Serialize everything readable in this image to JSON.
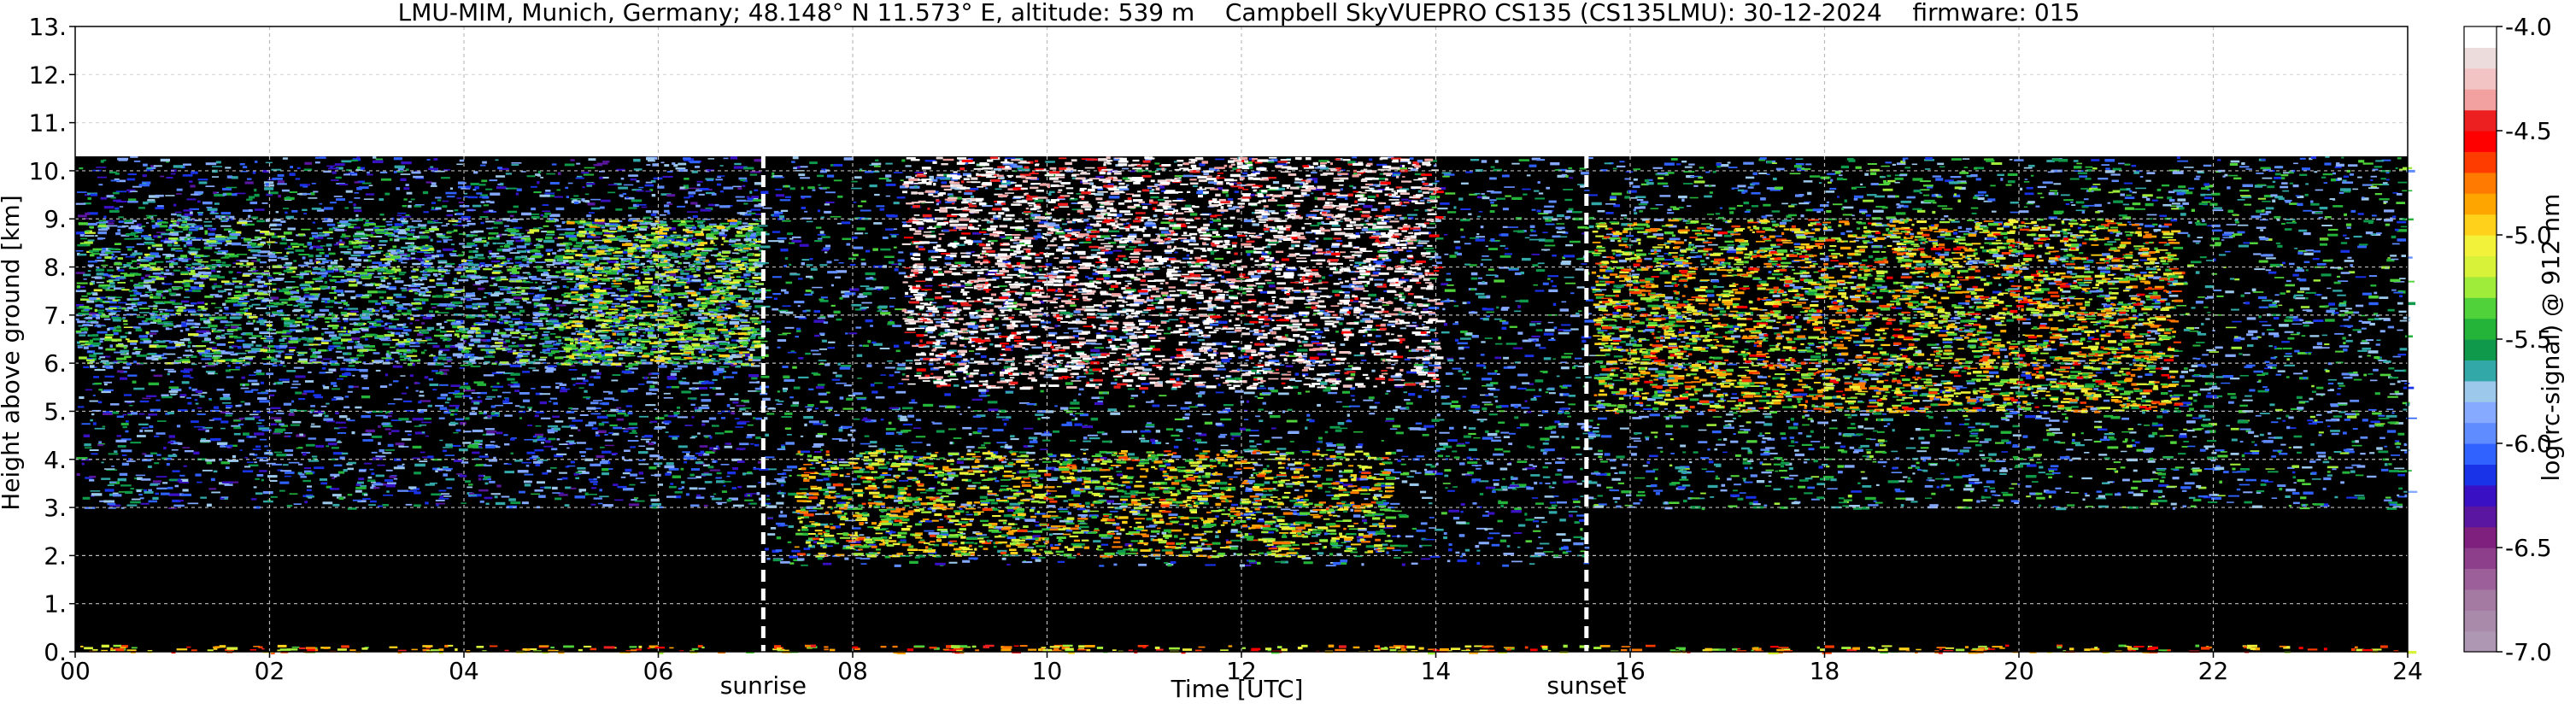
{
  "chart_data": {
    "type": "heatmap",
    "title": "LMU-MIM, Munich, Germany; 48.148° N 11.573° E, altitude: 539 m    Campbell SkyVUEPRO CS135 (CS135LMU): 30-12-2024    firmware: 015",
    "xlabel": "Time [UTC]",
    "ylabel": "Height above ground [km]",
    "xlim": [
      0,
      24
    ],
    "ylim": [
      0,
      13
    ],
    "x_ticks": [
      {
        "value": 0,
        "label": "00"
      },
      {
        "value": 2,
        "label": "02"
      },
      {
        "value": 4,
        "label": "04"
      },
      {
        "value": 6,
        "label": "06"
      },
      {
        "value": 8,
        "label": "08"
      },
      {
        "value": 10,
        "label": "10"
      },
      {
        "value": 12,
        "label": "12"
      },
      {
        "value": 14,
        "label": "14"
      },
      {
        "value": 16,
        "label": "16"
      },
      {
        "value": 18,
        "label": "18"
      },
      {
        "value": 20,
        "label": "20"
      },
      {
        "value": 22,
        "label": "22"
      },
      {
        "value": 24,
        "label": "24"
      }
    ],
    "y_ticks": [
      {
        "value": 0,
        "label": "0."
      },
      {
        "value": 1,
        "label": "1."
      },
      {
        "value": 2,
        "label": "2."
      },
      {
        "value": 3,
        "label": "3."
      },
      {
        "value": 4,
        "label": "4."
      },
      {
        "value": 5,
        "label": "5."
      },
      {
        "value": 6,
        "label": "6."
      },
      {
        "value": 7,
        "label": "7."
      },
      {
        "value": 8,
        "label": "8."
      },
      {
        "value": 9,
        "label": "9."
      },
      {
        "value": 10,
        "label": "10."
      },
      {
        "value": 11,
        "label": "11."
      },
      {
        "value": 12,
        "label": "12."
      },
      {
        "value": 13,
        "label": "13."
      }
    ],
    "grid": true,
    "data_top_km": 10.3,
    "annotations": [
      {
        "label": "sunrise",
        "time": 7.08
      },
      {
        "label": "sunset",
        "time": 15.55
      }
    ],
    "colorbar": {
      "label": "log(rc-signal) @ 912 nm",
      "range": [
        -7.0,
        -4.0
      ],
      "ticks": [
        {
          "value": -4.0,
          "label": "-4.0"
        },
        {
          "value": -4.5,
          "label": "-4.5"
        },
        {
          "value": -5.0,
          "label": "-5.0"
        },
        {
          "value": -5.5,
          "label": "-5.5"
        },
        {
          "value": -6.0,
          "label": "-6.0"
        },
        {
          "value": -6.5,
          "label": "-6.5"
        },
        {
          "value": -7.0,
          "label": "-7.0"
        }
      ],
      "colors": [
        "#ae97b2",
        "#a98aab",
        "#a47aa3",
        "#9c5f99",
        "#8e3f8b",
        "#7f1f7e",
        "#5a16a0",
        "#3a10c4",
        "#1833e8",
        "#2f62ff",
        "#5f8cff",
        "#86aaff",
        "#9cc8ec",
        "#32a8a8",
        "#0e9a4a",
        "#25b43a",
        "#4fd23a",
        "#a0ec3a",
        "#d8f23a",
        "#f2f23a",
        "#ffd11a",
        "#ffa500",
        "#ff7a00",
        "#ff3c00",
        "#ff0000",
        "#ec2020",
        "#f2a0a0",
        "#f2c4c4",
        "#ecdcdc",
        "#ffffff"
      ]
    },
    "profile_regions": [
      {
        "t0": 0.0,
        "t1": 7.08,
        "h0": 3.0,
        "h1": 10.3,
        "level": -5.9
      },
      {
        "t0": 0.0,
        "t1": 7.08,
        "h0": 6.0,
        "h1": 9.0,
        "level": -5.6
      },
      {
        "t0": 5.0,
        "t1": 7.0,
        "h0": 6.0,
        "h1": 9.0,
        "level": -5.3
      },
      {
        "t0": 7.08,
        "t1": 15.55,
        "h0": 1.8,
        "h1": 10.3,
        "level": -5.8
      },
      {
        "t0": 7.4,
        "t1": 13.5,
        "h0": 2.0,
        "h1": 4.2,
        "level": -5.1
      },
      {
        "t0": 8.5,
        "t1": 14.0,
        "h0": 5.5,
        "h1": 10.3,
        "level": -4.1
      },
      {
        "t0": 15.55,
        "t1": 24.0,
        "h0": 3.0,
        "h1": 10.3,
        "level": -5.7
      },
      {
        "t0": 15.6,
        "t1": 21.6,
        "h0": 5.0,
        "h1": 9.0,
        "level": -5.0
      },
      {
        "t0": 0.0,
        "t1": 24.0,
        "h0": 0.0,
        "h1": 0.15,
        "level": -4.9
      }
    ]
  }
}
